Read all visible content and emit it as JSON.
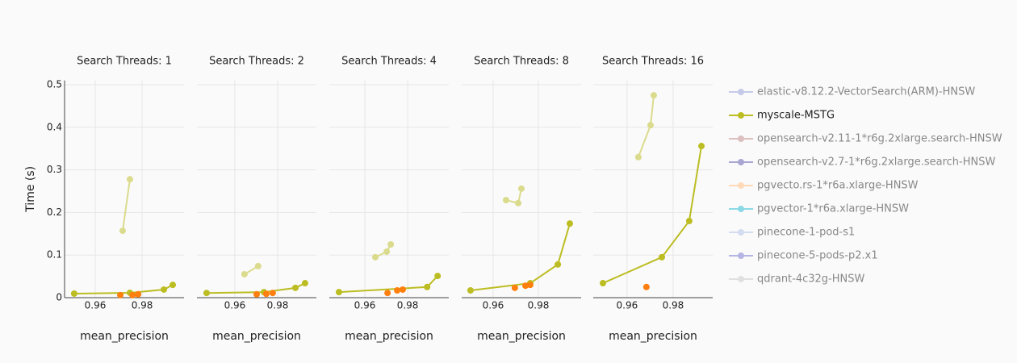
{
  "chart_data": [
    {
      "type": "line",
      "title": "Search Threads: 1",
      "x_label": "mean_precision",
      "y_label": "Time (s)",
      "xlim": [
        0.9469,
        0.9979
      ],
      "xticks": [
        0.96,
        0.98
      ],
      "ylim": [
        0,
        0.51
      ],
      "yticks": [
        0,
        0.1,
        0.2,
        0.3,
        0.4,
        0.5
      ],
      "grid": true,
      "series": [
        {
          "color": "#dbdb8d",
          "mode": "lines+markers",
          "x": [
            0.9717,
            0.9748
          ],
          "values": [
            0.157,
            0.278
          ]
        },
        {
          "color": "#bcbd22",
          "mode": "lines+markers",
          "x": [
            0.951,
            0.9748,
            0.9893,
            0.9931
          ],
          "values": [
            0.0095,
            0.0114,
            0.019,
            0.03
          ]
        },
        {
          "color": "#ff7f0e",
          "mode": "markers",
          "x": [
            0.9707,
            0.9759,
            0.9783
          ],
          "values": [
            0.006,
            0.006,
            0.008
          ]
        }
      ]
    },
    {
      "type": "line",
      "title": "Search Threads: 2",
      "x_label": "mean_precision",
      "xlim": [
        0.9423,
        0.9981
      ],
      "xticks": [
        0.96,
        0.98
      ],
      "ylim": [
        0,
        0.51
      ],
      "yticks": [
        0,
        0.1,
        0.2,
        0.3,
        0.4,
        0.5
      ],
      "grid": true,
      "series": [
        {
          "color": "#dbdb8d",
          "mode": "lines+markers",
          "x": [
            0.9645,
            0.9709
          ],
          "values": [
            0.055,
            0.074
          ]
        },
        {
          "color": "#bcbd22",
          "mode": "lines+markers",
          "x": [
            0.9468,
            0.9736,
            0.9883,
            0.9928
          ],
          "values": [
            0.011,
            0.013,
            0.023,
            0.034
          ]
        },
        {
          "color": "#ff7f0e",
          "mode": "markers",
          "x": [
            0.9702,
            0.9747,
            0.9777
          ],
          "values": [
            0.008,
            0.009,
            0.011
          ]
        }
      ]
    },
    {
      "type": "line",
      "title": "Search Threads: 4",
      "x_label": "mean_precision",
      "xlim": [
        0.9434,
        0.9992
      ],
      "xticks": [
        0.96,
        0.98
      ],
      "ylim": [
        0,
        0.51
      ],
      "yticks": [
        0,
        0.1,
        0.2,
        0.3,
        0.4,
        0.5
      ],
      "grid": true,
      "series": [
        {
          "color": "#dbdb8d",
          "mode": "lines+markers",
          "x": [
            0.9649,
            0.9702,
            0.9721
          ],
          "values": [
            0.095,
            0.108,
            0.125
          ]
        },
        {
          "color": "#bcbd22",
          "mode": "lines+markers",
          "x": [
            0.9479,
            0.9891,
            0.994
          ],
          "values": [
            0.013,
            0.025,
            0.051
          ]
        },
        {
          "color": "#ff7f0e",
          "mode": "markers",
          "x": [
            0.9706,
            0.9751,
            0.9777
          ],
          "values": [
            0.011,
            0.017,
            0.019
          ]
        }
      ]
    },
    {
      "type": "line",
      "title": "Search Threads: 8",
      "x_label": "mean_precision",
      "xlim": [
        0.9461,
        0.9989
      ],
      "xticks": [
        0.96,
        0.98
      ],
      "ylim": [
        0,
        0.51
      ],
      "yticks": [
        0,
        0.1,
        0.2,
        0.3,
        0.4,
        0.5
      ],
      "grid": true,
      "series": [
        {
          "color": "#dbdb8d",
          "mode": "lines+markers",
          "x": [
            0.9657,
            0.9711,
            0.9725
          ],
          "values": [
            0.229,
            0.222,
            0.256
          ]
        },
        {
          "color": "#bcbd22",
          "mode": "lines+markers",
          "x": [
            0.95,
            0.9764,
            0.9886,
            0.9939
          ],
          "values": [
            0.017,
            0.034,
            0.078,
            0.174
          ]
        },
        {
          "color": "#ff7f0e",
          "mode": "markers",
          "x": [
            0.9696,
            0.9743,
            0.9764
          ],
          "values": [
            0.023,
            0.028,
            0.03
          ]
        }
      ]
    },
    {
      "type": "line",
      "title": "Search Threads: 16",
      "x_label": "mean_precision",
      "xlim": [
        0.9453,
        0.9972
      ],
      "xticks": [
        0.96,
        0.98
      ],
      "ylim": [
        0,
        0.51
      ],
      "yticks": [
        0,
        0.1,
        0.2,
        0.3,
        0.4,
        0.5
      ],
      "grid": true,
      "series": [
        {
          "color": "#dbdb8d",
          "mode": "lines+markers",
          "x": [
            0.9649,
            0.9702,
            0.9716
          ],
          "values": [
            0.33,
            0.405,
            0.475
          ]
        },
        {
          "color": "#bcbd22",
          "mode": "lines+markers",
          "x": [
            0.9495,
            0.9751,
            0.987,
            0.9923
          ],
          "values": [
            0.034,
            0.095,
            0.18,
            0.356
          ]
        },
        {
          "color": "#ff7f0e",
          "mode": "markers",
          "x": [
            0.9684
          ],
          "values": [
            0.025
          ]
        }
      ]
    }
  ],
  "legend": {
    "items": [
      {
        "name": "elastic-v8.12.2-VectorSearch(ARM)-HNSW",
        "color": "#c5cae9",
        "active": false
      },
      {
        "name": "myscale-MSTG",
        "color": "#bcbd22",
        "active": true
      },
      {
        "name": "opensearch-v2.11-1*r6g.2xlarge.search-HNSW",
        "color": "#dcc0c0",
        "active": false
      },
      {
        "name": "opensearch-v2.7-1*r6g.2xlarge.search-HNSW",
        "color": "#a9a6d4",
        "active": false
      },
      {
        "name": "pgvecto.rs-1*r6a.xlarge-HNSW",
        "color": "#ffdab8",
        "active": false
      },
      {
        "name": "pgvector-1*r6a.xlarge-HNSW",
        "color": "#8cd9e6",
        "active": false
      },
      {
        "name": "pinecone-1-pod-s1",
        "color": "#d3dcf0",
        "active": false
      },
      {
        "name": "pinecone-5-pods-p2.x1",
        "color": "#b5b5e3",
        "active": false
      },
      {
        "name": "qdrant-4c32g-HNSW",
        "color": "#e0e0e0",
        "active": false
      }
    ]
  }
}
